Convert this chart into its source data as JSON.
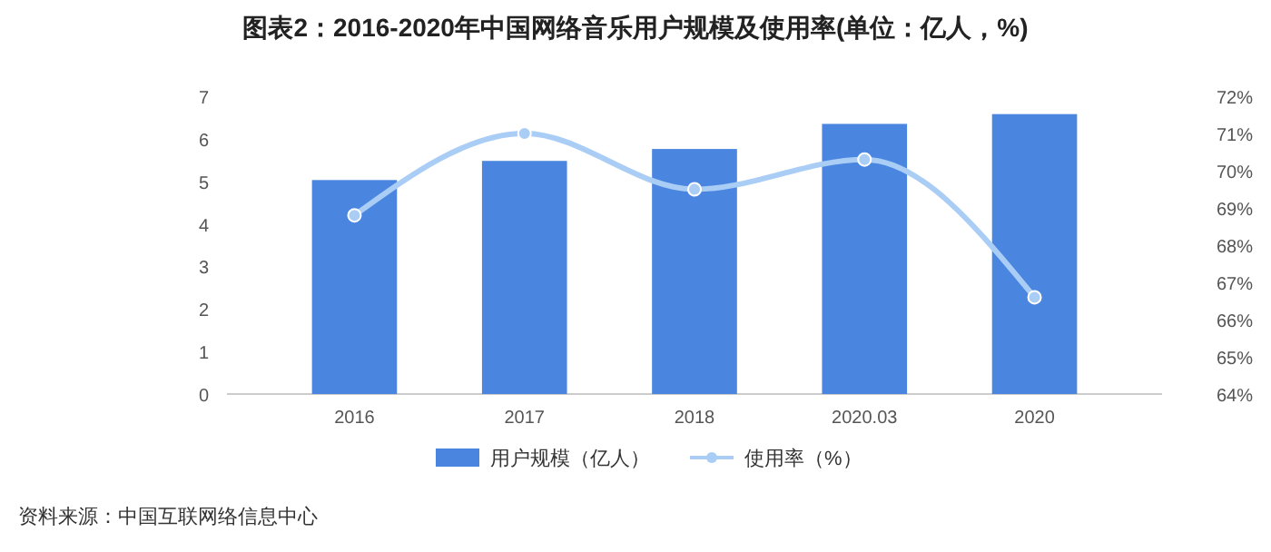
{
  "chart_data": {
    "type": "bar",
    "title": "图表2：2016-2020年中国网络音乐用户规模及使用率(单位：亿人，%)",
    "categories": [
      "2016",
      "2017",
      "2018",
      "2020.03",
      "2020"
    ],
    "series": [
      {
        "name": "用户规模（亿人）",
        "color": "#4a86e0",
        "values": [
          5.03,
          5.48,
          5.76,
          6.35,
          6.58
        ]
      },
      {
        "name": "使用率（%）",
        "type": "line",
        "axis": "y2",
        "color": "#a9cdf5",
        "values": [
          68.8,
          71.0,
          69.5,
          70.3,
          66.6
        ]
      }
    ],
    "ylim": [
      0,
      7
    ],
    "yticks": [
      0,
      1,
      2,
      3,
      4,
      5,
      6,
      7
    ],
    "y2lim": [
      64,
      72
    ],
    "y2ticks": [
      {
        "value": 64,
        "label": "64%"
      },
      {
        "value": 65,
        "label": "65%"
      },
      {
        "value": 66,
        "label": "66%"
      },
      {
        "value": 67,
        "label": "67%"
      },
      {
        "value": 68,
        "label": "68%"
      },
      {
        "value": 69,
        "label": "69%"
      },
      {
        "value": 70,
        "label": "70%"
      },
      {
        "value": 71,
        "label": "71%"
      },
      {
        "value": 72,
        "label": "72%"
      }
    ],
    "grid": false,
    "legend": "bottom",
    "marker": "circle",
    "annotations": [
      "资料来源：中国互联网络信息中心"
    ]
  }
}
